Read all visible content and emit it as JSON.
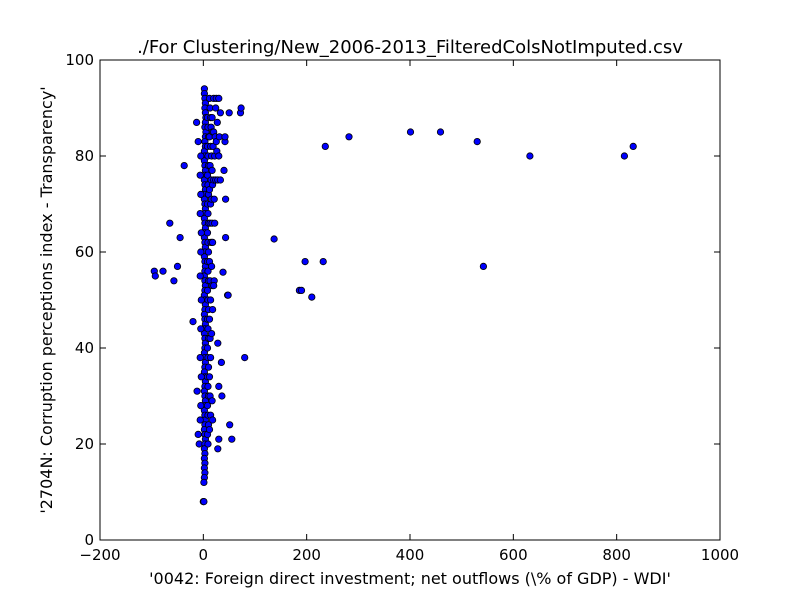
{
  "chart_data": {
    "type": "scatter",
    "title": "./For Clustering/New_2006-2013_FilteredColsNotImputed.csv",
    "xlabel": "'0042: Foreign direct investment; net outflows  (\\% of GDP) - WDI'",
    "ylabel": "'2704N: Corruption perceptions index - Transparency'",
    "xlim": [
      -200,
      1000
    ],
    "ylim": [
      0,
      100
    ],
    "xticks": [
      -200,
      0,
      200,
      400,
      600,
      800,
      1000
    ],
    "yticks": [
      0,
      20,
      40,
      60,
      80,
      100
    ],
    "grid": false,
    "marker_color": "#0000ff",
    "marker_edge_color": "#000000",
    "series": [
      {
        "points": [
          [
            -95,
            56
          ],
          [
            -93,
            55
          ],
          [
            -78,
            56
          ],
          [
            -65,
            66
          ],
          [
            -57,
            54
          ],
          [
            -50,
            57
          ],
          [
            -45,
            63
          ],
          [
            -37,
            78
          ],
          [
            -20,
            45.5
          ],
          [
            -13,
            87
          ],
          [
            -10,
            83
          ],
          [
            -12,
            31
          ],
          [
            -10,
            22
          ],
          [
            -8,
            20
          ],
          [
            2,
            94
          ],
          [
            2,
            93
          ],
          [
            3,
            92
          ],
          [
            4,
            91
          ],
          [
            3,
            90
          ],
          [
            4,
            89
          ],
          [
            5,
            88
          ],
          [
            4,
            87
          ],
          [
            3,
            86
          ],
          [
            5,
            85
          ],
          [
            4,
            84
          ],
          [
            3,
            83
          ],
          [
            4,
            82
          ],
          [
            2,
            81
          ],
          [
            3,
            80
          ],
          [
            2,
            79
          ],
          [
            3,
            78
          ],
          [
            4,
            77
          ],
          [
            3,
            76
          ],
          [
            2,
            75
          ],
          [
            3,
            74
          ],
          [
            4,
            73
          ],
          [
            3,
            72
          ],
          [
            2,
            71
          ],
          [
            3,
            70
          ],
          [
            4,
            69
          ],
          [
            3,
            68
          ],
          [
            2,
            67
          ],
          [
            3,
            66
          ],
          [
            4,
            65
          ],
          [
            3,
            64
          ],
          [
            2,
            63
          ],
          [
            3,
            62
          ],
          [
            4,
            61
          ],
          [
            3,
            60
          ],
          [
            2,
            59
          ],
          [
            3,
            58
          ],
          [
            4,
            57
          ],
          [
            3,
            56
          ],
          [
            2,
            55
          ],
          [
            3,
            54
          ],
          [
            4,
            53
          ],
          [
            3,
            52
          ],
          [
            2,
            51
          ],
          [
            3,
            50
          ],
          [
            4,
            49
          ],
          [
            3,
            48
          ],
          [
            2,
            47
          ],
          [
            3,
            46
          ],
          [
            4,
            45
          ],
          [
            3,
            44
          ],
          [
            2,
            43
          ],
          [
            3,
            42
          ],
          [
            4,
            41
          ],
          [
            3,
            40
          ],
          [
            2,
            39
          ],
          [
            3,
            38
          ],
          [
            4,
            37
          ],
          [
            3,
            36
          ],
          [
            2,
            35
          ],
          [
            3,
            34
          ],
          [
            4,
            33
          ],
          [
            3,
            32
          ],
          [
            2,
            31
          ],
          [
            3,
            30
          ],
          [
            4,
            29
          ],
          [
            3,
            28
          ],
          [
            2,
            27
          ],
          [
            3,
            26
          ],
          [
            4,
            25
          ],
          [
            3,
            24
          ],
          [
            2,
            23
          ],
          [
            3,
            22
          ],
          [
            4,
            21
          ],
          [
            3,
            20
          ],
          [
            2,
            19
          ],
          [
            3,
            18
          ],
          [
            2,
            17
          ],
          [
            3,
            16
          ],
          [
            2,
            15
          ],
          [
            3,
            14
          ],
          [
            2,
            13
          ],
          [
            1,
            12
          ],
          [
            0,
            8
          ],
          [
            1,
            8
          ],
          [
            -5,
            80
          ],
          [
            -6,
            76
          ],
          [
            -5,
            72
          ],
          [
            -6,
            68
          ],
          [
            -4,
            64
          ],
          [
            -5,
            60
          ],
          [
            -6,
            55
          ],
          [
            -4,
            50
          ],
          [
            -5,
            44
          ],
          [
            -6,
            38
          ],
          [
            -4,
            34
          ],
          [
            -5,
            28
          ],
          [
            -6,
            25
          ],
          [
            8,
            88
          ],
          [
            9,
            86
          ],
          [
            10,
            84
          ],
          [
            8,
            82
          ],
          [
            9,
            80
          ],
          [
            10,
            78
          ],
          [
            8,
            76
          ],
          [
            9,
            74
          ],
          [
            10,
            72
          ],
          [
            8,
            70
          ],
          [
            9,
            68
          ],
          [
            10,
            66
          ],
          [
            8,
            64
          ],
          [
            9,
            62
          ],
          [
            10,
            60
          ],
          [
            8,
            58
          ],
          [
            9,
            56
          ],
          [
            10,
            54
          ],
          [
            8,
            52
          ],
          [
            9,
            50
          ],
          [
            10,
            48
          ],
          [
            8,
            46
          ],
          [
            9,
            44
          ],
          [
            10,
            42
          ],
          [
            8,
            40
          ],
          [
            9,
            38
          ],
          [
            10,
            36
          ],
          [
            8,
            34
          ],
          [
            9,
            32
          ],
          [
            10,
            30
          ],
          [
            8,
            28
          ],
          [
            9,
            26
          ],
          [
            10,
            24
          ],
          [
            8,
            22
          ],
          [
            9,
            20
          ],
          [
            12,
            92
          ],
          [
            13,
            90
          ],
          [
            14,
            88
          ],
          [
            15,
            86
          ],
          [
            12,
            84
          ],
          [
            14,
            82
          ],
          [
            13,
            78
          ],
          [
            15,
            75
          ],
          [
            12,
            73
          ],
          [
            14,
            70
          ],
          [
            13,
            66
          ],
          [
            15,
            62
          ],
          [
            12,
            58
          ],
          [
            13,
            54
          ],
          [
            14,
            50
          ],
          [
            12,
            46
          ],
          [
            13,
            42
          ],
          [
            14,
            38
          ],
          [
            12,
            34
          ],
          [
            13,
            30
          ],
          [
            14,
            26
          ],
          [
            12,
            23
          ],
          [
            17,
            88
          ],
          [
            18,
            85
          ],
          [
            16,
            80
          ],
          [
            17,
            77
          ],
          [
            18,
            74
          ],
          [
            16,
            71
          ],
          [
            17,
            66
          ],
          [
            18,
            62
          ],
          [
            16,
            57
          ],
          [
            17,
            53
          ],
          [
            18,
            48
          ],
          [
            16,
            43
          ],
          [
            17,
            29
          ],
          [
            18,
            25
          ],
          [
            20,
            92
          ],
          [
            20,
            85
          ],
          [
            19,
            82
          ],
          [
            20,
            75
          ],
          [
            21,
            71
          ],
          [
            22,
            66
          ],
          [
            21,
            54
          ],
          [
            20,
            53
          ],
          [
            22,
            80
          ],
          [
            23,
            84
          ],
          [
            24,
            90
          ],
          [
            25,
            92
          ],
          [
            25,
            83
          ],
          [
            24,
            75
          ],
          [
            26,
            81
          ],
          [
            27,
            87
          ],
          [
            28,
            75
          ],
          [
            30,
            92
          ],
          [
            31,
            84
          ],
          [
            30,
            80
          ],
          [
            33,
            89
          ],
          [
            33,
            75
          ],
          [
            28,
            41
          ],
          [
            30,
            32
          ],
          [
            30,
            21
          ],
          [
            28,
            19
          ],
          [
            35,
            37
          ],
          [
            36,
            30
          ],
          [
            38,
            55.8
          ],
          [
            40,
            77
          ],
          [
            42,
            83
          ],
          [
            42,
            84
          ],
          [
            43,
            71
          ],
          [
            43,
            63
          ],
          [
            47,
            51
          ],
          [
            48,
            51
          ],
          [
            50,
            89
          ],
          [
            51,
            24
          ],
          [
            55,
            21
          ],
          [
            72,
            89
          ],
          [
            73,
            90
          ],
          [
            80,
            38
          ],
          [
            137,
            62.7
          ],
          [
            186,
            52
          ],
          [
            190,
            52
          ],
          [
            197,
            58
          ],
          [
            210,
            50.6
          ],
          [
            232,
            58
          ],
          [
            236,
            82
          ],
          [
            282,
            84
          ],
          [
            401,
            85
          ],
          [
            459,
            85
          ],
          [
            530,
            83
          ],
          [
            542,
            57
          ],
          [
            632,
            80
          ],
          [
            815,
            80
          ],
          [
            832,
            82
          ]
        ]
      }
    ]
  }
}
